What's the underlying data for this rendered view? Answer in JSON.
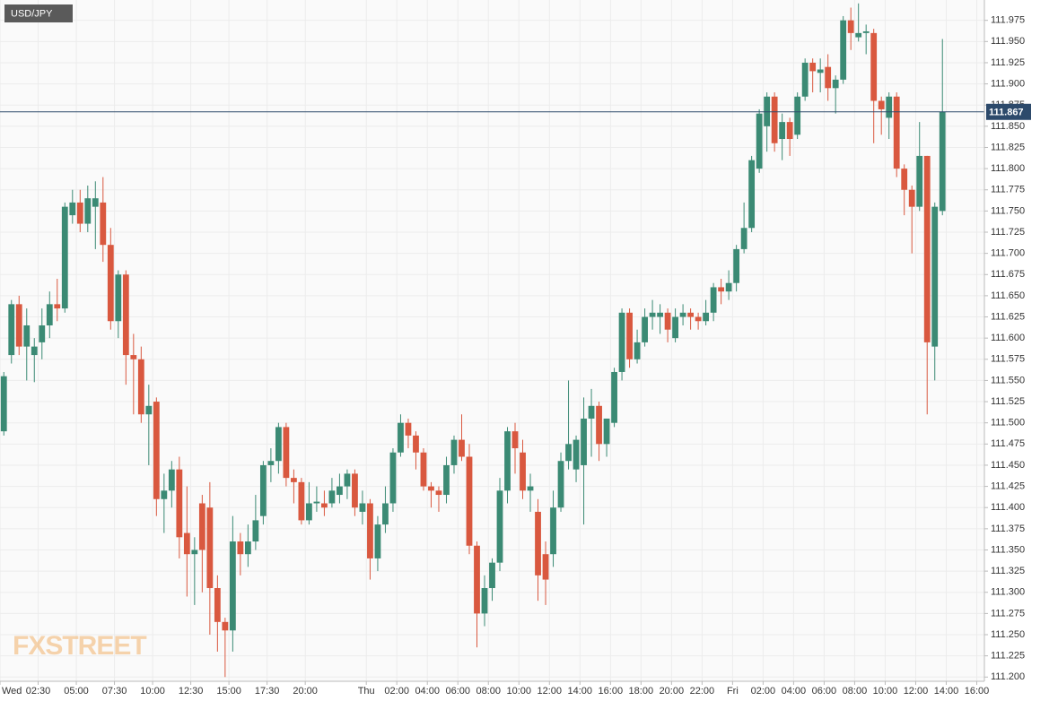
{
  "chart_data": {
    "type": "candlestick",
    "title": "USD/JPY",
    "watermark": "FXSTREET",
    "x": [
      0,
      0.5,
      1,
      1.5,
      2,
      2.5,
      3,
      3.5,
      4,
      4.5,
      5,
      5.5,
      6,
      6.5,
      7,
      7.5,
      8,
      8.5,
      9,
      9.5,
      10,
      10.5,
      11,
      11.5,
      12,
      12.5,
      13,
      13.5,
      14,
      14.5,
      15,
      15.5,
      16,
      16.5,
      17,
      17.5,
      18,
      18.5,
      19,
      19.5,
      20,
      20.5,
      21,
      21.5,
      22,
      22.5,
      23,
      23.5,
      24,
      24.5,
      25,
      25.5,
      26,
      26.5,
      27,
      27.5,
      28,
      28.5,
      29,
      29.5,
      30,
      30.5,
      31,
      31.5,
      32,
      32.5,
      33,
      33.5,
      34,
      34.5,
      35,
      35.5,
      36,
      36.5,
      37,
      37.5,
      38,
      38.5,
      39,
      39.5,
      40,
      40.5,
      41,
      41.5,
      42,
      42.5,
      43,
      43.5,
      44,
      44.5,
      45,
      45.5,
      46,
      46.5,
      47,
      47.5,
      48,
      48.5,
      49,
      49.5,
      50,
      50.5,
      51,
      51.5,
      52,
      52.5,
      53,
      53.5,
      54,
      54.5,
      55,
      55.5,
      56,
      56.5,
      57,
      57.5,
      58,
      58.5,
      59,
      59.5,
      60,
      60.5,
      61,
      61.5
    ],
    "open": [
      111.49,
      111.58,
      111.64,
      111.59,
      111.58,
      111.595,
      111.615,
      111.64,
      111.635,
      111.745,
      111.76,
      111.735,
      111.755,
      111.76,
      111.71,
      111.62,
      111.675,
      111.58,
      111.575,
      111.51,
      111.525,
      111.41,
      111.42,
      111.445,
      111.37,
      111.345,
      111.405,
      111.4,
      111.305,
      111.265,
      111.255,
      111.36,
      111.345,
      111.36,
      111.39,
      111.45,
      111.455,
      111.495,
      111.435,
      111.43,
      111.385,
      111.405,
      111.405,
      111.405,
      111.415,
      111.425,
      111.44,
      111.395,
      111.405,
      111.34,
      111.38,
      111.405,
      111.465,
      111.5,
      111.485,
      111.465,
      111.425,
      111.42,
      111.415,
      111.45,
      111.48,
      111.46,
      111.355,
      111.275,
      111.305,
      111.335,
      111.42,
      111.49,
      111.465,
      111.42,
      111.395,
      111.345,
      111.345,
      111.4,
      111.455,
      111.445,
      111.45,
      111.505,
      111.52,
      111.475,
      111.5,
      111.56,
      111.63,
      111.575,
      111.595,
      111.625,
      111.625,
      111.63,
      111.6,
      111.625,
      111.63,
      111.625,
      111.62,
      111.63,
      111.66,
      111.655,
      111.665,
      111.705,
      111.73,
      111.8,
      111.85,
      111.885,
      111.835,
      111.855,
      111.84,
      111.885,
      111.925,
      111.913,
      111.92,
      111.895,
      111.905,
      111.975,
      111.955,
      111.96,
      111.96,
      111.88,
      111.86,
      111.885,
      111.8,
      111.775,
      111.755,
      111.815,
      111.59,
      111.75
    ],
    "high": [
      111.56,
      111.645,
      111.65,
      111.635,
      111.6,
      111.635,
      111.655,
      111.67,
      111.76,
      111.775,
      111.775,
      111.78,
      111.785,
      111.79,
      111.73,
      111.68,
      111.68,
      111.605,
      111.59,
      111.545,
      111.53,
      111.44,
      111.455,
      111.46,
      111.425,
      111.365,
      111.415,
      111.43,
      111.32,
      111.27,
      111.39,
      111.37,
      111.38,
      111.415,
      111.455,
      111.47,
      111.5,
      111.5,
      111.445,
      111.435,
      111.43,
      111.425,
      111.42,
      111.435,
      111.44,
      111.445,
      111.445,
      111.42,
      111.41,
      111.39,
      111.425,
      111.47,
      111.51,
      111.505,
      111.49,
      111.47,
      111.43,
      111.425,
      111.46,
      111.485,
      111.51,
      111.475,
      111.36,
      111.32,
      111.34,
      111.435,
      111.495,
      111.5,
      111.48,
      111.44,
      111.41,
      111.36,
      111.42,
      111.465,
      111.55,
      111.485,
      111.53,
      111.54,
      111.525,
      111.505,
      111.565,
      111.635,
      111.635,
      111.61,
      111.635,
      111.645,
      111.64,
      111.635,
      111.635,
      111.64,
      111.635,
      111.63,
      111.645,
      111.665,
      111.67,
      111.68,
      111.71,
      111.76,
      111.815,
      111.87,
      111.89,
      111.89,
      111.865,
      111.86,
      111.89,
      111.93,
      111.93,
      111.93,
      111.935,
      111.91,
      111.98,
      111.99,
      111.995,
      111.97,
      111.965,
      111.885,
      111.89,
      111.89,
      111.805,
      111.78,
      111.855,
      111.815,
      111.76,
      111.953
    ],
    "low": [
      111.485,
      111.57,
      111.58,
      111.55,
      111.548,
      111.575,
      111.6,
      111.62,
      111.63,
      111.735,
      111.725,
      111.725,
      111.705,
      111.69,
      111.61,
      111.6,
      111.545,
      111.51,
      111.5,
      111.45,
      111.39,
      111.37,
      111.4,
      111.34,
      111.295,
      111.285,
      111.3,
      111.25,
      111.23,
      111.2,
      111.23,
      111.32,
      111.33,
      111.35,
      111.38,
      111.43,
      111.44,
      111.425,
      111.405,
      111.38,
      111.38,
      111.395,
      111.39,
      111.4,
      111.405,
      111.41,
      111.39,
      111.38,
      111.315,
      111.325,
      111.37,
      111.395,
      111.46,
      111.47,
      111.445,
      111.42,
      111.4,
      111.395,
      111.405,
      111.44,
      111.455,
      111.345,
      111.235,
      111.26,
      111.29,
      111.325,
      111.405,
      111.44,
      111.41,
      111.395,
      111.29,
      111.285,
      111.33,
      111.395,
      111.445,
      111.43,
      111.38,
      111.46,
      111.455,
      111.46,
      111.495,
      111.55,
      111.565,
      111.57,
      111.59,
      111.61,
      111.605,
      111.595,
      111.595,
      111.615,
      111.61,
      111.61,
      111.615,
      111.62,
      111.64,
      111.645,
      111.655,
      111.7,
      111.725,
      111.795,
      111.82,
      111.82,
      111.81,
      111.815,
      111.835,
      111.88,
      111.89,
      111.89,
      111.88,
      111.865,
      111.9,
      111.94,
      111.95,
      111.935,
      111.83,
      111.84,
      111.835,
      111.79,
      111.745,
      111.7,
      111.75,
      111.51,
      111.55,
      111.745
    ],
    "close": [
      111.555,
      111.64,
      111.59,
      111.615,
      111.59,
      111.615,
      111.64,
      111.635,
      111.755,
      111.76,
      111.735,
      111.765,
      111.765,
      111.71,
      111.62,
      111.675,
      111.58,
      111.575,
      111.51,
      111.52,
      111.41,
      111.42,
      111.445,
      111.365,
      111.345,
      111.35,
      111.35,
      111.305,
      111.265,
      111.255,
      111.36,
      111.345,
      111.36,
      111.385,
      111.45,
      111.455,
      111.495,
      111.435,
      111.43,
      111.385,
      111.405,
      111.407,
      111.4,
      111.42,
      111.425,
      111.44,
      111.4,
      111.405,
      111.34,
      111.38,
      111.405,
      111.465,
      111.5,
      111.485,
      111.465,
      111.425,
      111.42,
      111.415,
      111.45,
      111.48,
      111.46,
      111.355,
      111.275,
      111.305,
      111.335,
      111.42,
      111.49,
      111.47,
      111.42,
      111.425,
      111.32,
      111.315,
      111.4,
      111.455,
      111.475,
      111.48,
      111.505,
      111.52,
      111.475,
      111.505,
      111.56,
      111.63,
      111.575,
      111.595,
      111.625,
      111.63,
      111.63,
      111.61,
      111.625,
      111.63,
      111.625,
      111.62,
      111.63,
      111.66,
      111.655,
      111.665,
      111.705,
      111.73,
      111.81,
      111.865,
      111.885,
      111.83,
      111.855,
      111.835,
      111.885,
      111.925,
      111.915,
      111.917,
      111.895,
      111.905,
      111.975,
      111.96,
      111.96,
      111.962,
      111.88,
      111.87,
      111.885,
      111.8,
      111.775,
      111.755,
      111.815,
      111.595,
      111.755,
      111.867
    ],
    "up_color": "#3b8a74",
    "down_color": "#d9583f",
    "last_price": 111.867,
    "last_price_color": "#2d4a6b",
    "xlim": [
      0,
      64.5
    ],
    "ylim": [
      111.195,
      111.999
    ],
    "xticks": [
      {
        "value": 0,
        "label": "Wed"
      },
      {
        "value": 2.5,
        "label": "02:30"
      },
      {
        "value": 5,
        "label": "05:00"
      },
      {
        "value": 7.5,
        "label": "07:30"
      },
      {
        "value": 10,
        "label": "10:00"
      },
      {
        "value": 12.5,
        "label": "12:30"
      },
      {
        "value": 15,
        "label": "15:00"
      },
      {
        "value": 17.5,
        "label": "17:30"
      },
      {
        "value": 20,
        "label": "20:00"
      },
      {
        "value": 24,
        "label": "Thu"
      },
      {
        "value": 26,
        "label": "02:00"
      },
      {
        "value": 28,
        "label": "04:00"
      },
      {
        "value": 30,
        "label": "06:00"
      },
      {
        "value": 32,
        "label": "08:00"
      },
      {
        "value": 34,
        "label": "10:00"
      },
      {
        "value": 36,
        "label": "12:00"
      },
      {
        "value": 38,
        "label": "14:00"
      },
      {
        "value": 40,
        "label": "16:00"
      },
      {
        "value": 42,
        "label": "18:00"
      },
      {
        "value": 44,
        "label": "20:00"
      },
      {
        "value": 46,
        "label": "22:00"
      },
      {
        "value": 48,
        "label": "Fri"
      },
      {
        "value": 50,
        "label": "02:00"
      },
      {
        "value": 52,
        "label": "04:00"
      },
      {
        "value": 54,
        "label": "06:00"
      },
      {
        "value": 56,
        "label": "08:00"
      },
      {
        "value": 58,
        "label": "10:00"
      },
      {
        "value": 60,
        "label": "12:00"
      },
      {
        "value": 62,
        "label": "14:00"
      },
      {
        "value": 64,
        "label": "16:00"
      }
    ],
    "yticks": [
      {
        "value": 111.2,
        "label": "111.200"
      },
      111.225,
      {
        "value": 111.25,
        "label": "111.250"
      },
      111.275,
      {
        "value": 111.3,
        "label": "111.300"
      },
      111.325,
      {
        "value": 111.35,
        "label": "111.350"
      },
      111.375,
      {
        "value": 111.4,
        "label": "111.400"
      },
      111.425,
      {
        "value": 111.45,
        "label": "111.450"
      },
      111.475,
      {
        "value": 111.5,
        "label": "111.500"
      },
      111.525,
      {
        "value": 111.55,
        "label": "111.550"
      },
      111.575,
      {
        "value": 111.6,
        "label": "111.600"
      },
      111.625,
      {
        "value": 111.65,
        "label": "111.650"
      },
      111.675,
      {
        "value": 111.7,
        "label": "111.700"
      },
      111.725,
      {
        "value": 111.75,
        "label": "111.750"
      },
      111.775,
      {
        "value": 111.8,
        "label": "111.800"
      },
      111.825,
      {
        "value": 111.85,
        "label": "111.850"
      },
      111.875,
      {
        "value": 111.9,
        "label": "111.900"
      },
      111.925,
      {
        "value": 111.95,
        "label": "111.950"
      },
      111.975
    ],
    "grid": true
  }
}
